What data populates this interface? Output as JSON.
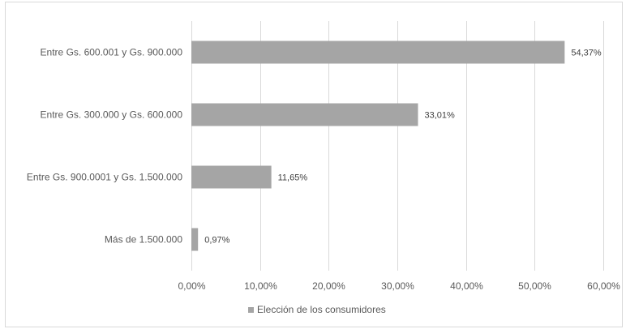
{
  "chart_data": {
    "type": "bar",
    "orientation": "horizontal",
    "categories": [
      "Entre Gs. 600.001 y Gs. 900.000",
      "Entre Gs. 300.000 y Gs. 600.000",
      "Entre Gs. 900.0001 y Gs. 1.500.000",
      "Más de 1.500.000"
    ],
    "series": [
      {
        "name": "Elección de los consumidores",
        "values": [
          54.37,
          33.01,
          11.65,
          0.97
        ],
        "labels": [
          "54,37%",
          "33,01%",
          "11,65%",
          "0,97%"
        ],
        "color": "#a5a5a5"
      }
    ],
    "xlim": [
      0,
      60
    ],
    "xticks": [
      "0,00%",
      "10,00%",
      "20,00%",
      "30,00%",
      "40,00%",
      "50,00%",
      "60,00%"
    ],
    "grid": true,
    "gridline_color": "#d9d9d9",
    "legend_position": "bottom"
  }
}
